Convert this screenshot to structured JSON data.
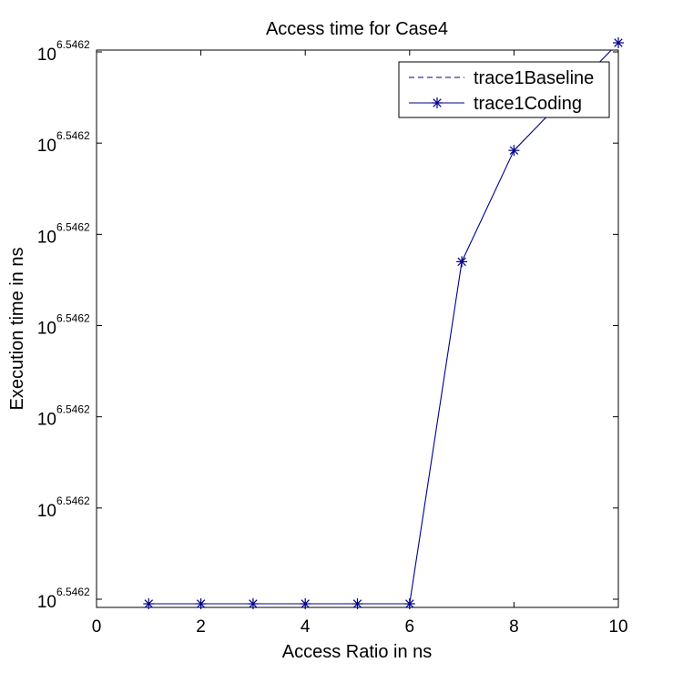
{
  "chart_data": {
    "type": "line",
    "title": "Access time for Case4",
    "xlabel": "Access Ratio in ns",
    "ylabel": "Execution time in ns",
    "xlim": [
      0,
      10
    ],
    "x_ticks": [
      "0",
      "2",
      "4",
      "6",
      "8",
      "10"
    ],
    "x_tick_values": [
      0,
      2,
      4,
      6,
      8,
      10
    ],
    "y_tick_base": "10",
    "y_tick_exponent": "6.5462",
    "y_tick_count": 7,
    "ylim": [
      0,
      6
    ],
    "grid": false,
    "legend_position": "top-right",
    "series": [
      {
        "name": "trace1Baseline",
        "style": "dashed",
        "color": "#00008b",
        "marker": "none",
        "x": [],
        "y": []
      },
      {
        "name": "trace1Coding",
        "style": "solid",
        "color": "#00008b",
        "marker": "asterisk",
        "x": [
          1,
          2,
          3,
          4,
          5,
          6,
          7,
          8,
          10
        ],
        "y": [
          -0.05,
          -0.05,
          -0.05,
          -0.05,
          -0.05,
          -0.05,
          3.7,
          4.92,
          6.1
        ]
      }
    ]
  }
}
